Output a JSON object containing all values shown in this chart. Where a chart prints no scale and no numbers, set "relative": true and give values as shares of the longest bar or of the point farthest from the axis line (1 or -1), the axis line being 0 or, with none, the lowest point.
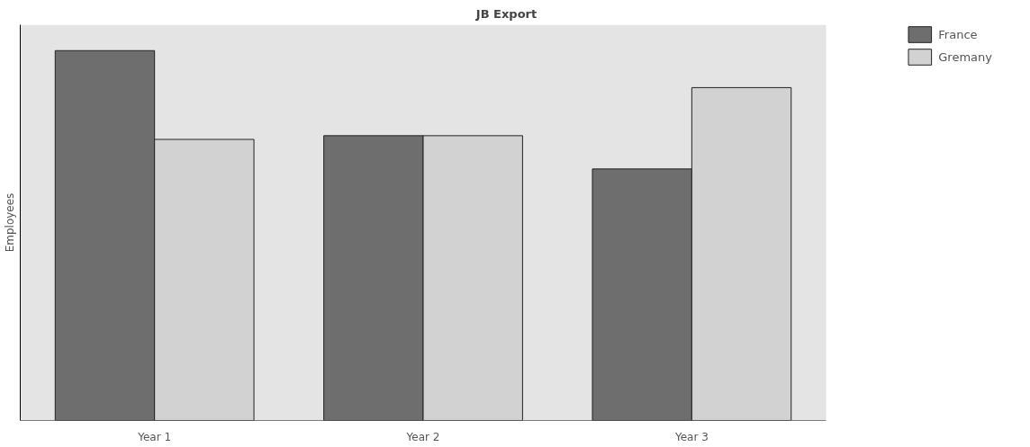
{
  "chart_data": {
    "type": "bar",
    "title": "JB Export",
    "ylabel": "Employees",
    "categories": [
      "Year 1",
      "Year 2",
      "Year 3"
    ],
    "relative": true,
    "legend": "top right",
    "series": [
      {
        "name": "France",
        "color": "#6e6e6e",
        "values": [
          1,
          0.77,
          0.68
        ]
      },
      {
        "name": "Gremany",
        "color": "#d2d2d2",
        "values": [
          0.76,
          0.77,
          0.9
        ]
      }
    ]
  }
}
